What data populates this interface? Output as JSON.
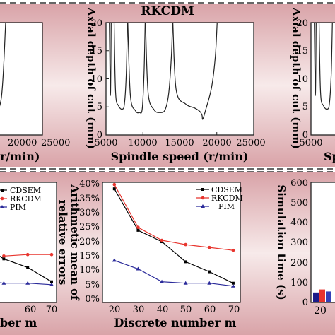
{
  "colors": {
    "band_edge": "#d9a3a8",
    "band_mid": "#f7eaea",
    "cdsem": "#000000",
    "rkcdm": "#e8352e",
    "pim": "#2a2a9a"
  },
  "chart_data": [
    {
      "id": "top-left",
      "type": "line",
      "title": "",
      "xlabel": "r/min)",
      "ylabel": "",
      "x_ticks": [
        "20000",
        "25000"
      ],
      "xlim": [
        5000,
        25000
      ],
      "ylim": [
        0,
        20
      ],
      "series": [
        {
          "x": [
            5000,
            15000,
            17800,
            18200,
            19400,
            20000
          ],
          "y": [
            20,
            8,
            4.5,
            3.4,
            6.5,
            20
          ]
        }
      ]
    },
    {
      "id": "top-center",
      "type": "line",
      "title": "RKCDM",
      "xlabel": "Spindle speed (r/min)",
      "ylabel": "Axial depth of cut (mm)",
      "x_ticks": [
        "5000",
        "10000",
        "15000",
        "20000",
        "25000"
      ],
      "y_ticks": [
        "0",
        "5",
        "10",
        "15",
        "20"
      ],
      "xlim": [
        5000,
        25000
      ],
      "ylim": [
        0,
        20
      ],
      "series": [
        {
          "x": [
            5450,
            5600,
            5700
          ],
          "y": [
            20,
            7,
            20
          ]
        },
        {
          "x": [
            6100,
            6300,
            6700,
            7200,
            7500,
            7750,
            7900
          ],
          "y": [
            20,
            7.5,
            5.2,
            4.6,
            5.6,
            11,
            20
          ]
        },
        {
          "x": [
            7950,
            8300,
            9000,
            9500,
            9900,
            10150,
            10300
          ],
          "y": [
            20,
            7,
            4.3,
            4.0,
            4.6,
            11,
            20
          ]
        },
        {
          "x": [
            10350,
            10700,
            11500,
            12300,
            13000,
            13500,
            13850,
            14000
          ],
          "y": [
            20,
            7.5,
            4.5,
            4.0,
            4.5,
            7.5,
            14,
            20
          ]
        },
        {
          "x": [
            14050,
            14500,
            15800,
            17000,
            17700,
            18000,
            18100,
            18500,
            19300,
            19800,
            20050
          ],
          "y": [
            20,
            8,
            5.5,
            4.8,
            4.2,
            3.5,
            2.8,
            4.5,
            8.5,
            14,
            20
          ]
        }
      ]
    },
    {
      "id": "top-right",
      "type": "line",
      "title": "",
      "xlabel": "Sp",
      "ylabel": "Axial depth of cut (mm)",
      "x_ticks": [
        "5000",
        "10000"
      ],
      "y_ticks": [
        "0",
        "5",
        "10",
        "15",
        "20"
      ],
      "xlim": [
        5000,
        25000
      ],
      "ylim": [
        0,
        20
      ],
      "series": [
        {
          "x": [
            5450,
            5600,
            5700
          ],
          "y": [
            20,
            7,
            20
          ]
        },
        {
          "x": [
            6100,
            6300,
            6700,
            7200,
            7500,
            7750,
            7900
          ],
          "y": [
            20,
            7.5,
            5.2,
            4.6,
            5.6,
            11,
            20
          ]
        }
      ]
    },
    {
      "id": "bottom-left",
      "type": "line",
      "title": "",
      "xlabel": "ber m",
      "ylabel": "",
      "x_ticks": [
        "60",
        "70"
      ],
      "xlim": [
        20,
        70
      ],
      "ylim": [
        0,
        40
      ],
      "legend": [
        "CDSEM",
        "RKCDM",
        "PIM"
      ],
      "series": [
        {
          "name": "CDSEM",
          "x": [
            40,
            50,
            60,
            70
          ],
          "y": [
            19.5,
            14,
            11,
            6
          ]
        },
        {
          "name": "RKCDM",
          "x": [
            50,
            60,
            70
          ],
          "y": [
            15,
            15.5,
            15.5
          ]
        },
        {
          "name": "PIM",
          "x": [
            40,
            50,
            60,
            70
          ],
          "y": [
            6.5,
            5.5,
            5.5,
            5
          ]
        }
      ]
    },
    {
      "id": "bottom-center",
      "type": "line",
      "title": "",
      "xlabel": "Discrete number m",
      "ylabel": "Arithmetic mean of relative errors",
      "ylabel_lines": [
        "Arithmetic mean of",
        "relative errors"
      ],
      "x_ticks": [
        "20",
        "30",
        "40",
        "50",
        "60",
        "70"
      ],
      "y_ticks": [
        "0%",
        "5%",
        "10%",
        "15%",
        "20%",
        "25%",
        "30%",
        "35%",
        "40%"
      ],
      "xlim": [
        15,
        73
      ],
      "ylim": [
        0,
        42
      ],
      "legend": [
        "CDSEM",
        "RKCDM",
        "PIM"
      ],
      "series": [
        {
          "name": "CDSEM",
          "x": [
            20,
            30,
            40,
            50,
            60,
            70
          ],
          "y": [
            38.5,
            24,
            20,
            13,
            9.5,
            5.5
          ]
        },
        {
          "name": "RKCDM",
          "x": [
            20,
            30,
            40,
            50,
            60,
            70
          ],
          "y": [
            40,
            25,
            20.5,
            19,
            18,
            17
          ]
        },
        {
          "name": "PIM",
          "x": [
            20,
            30,
            40,
            50,
            60,
            70
          ],
          "y": [
            13.5,
            10.5,
            6,
            5.5,
            5.5,
            4.5
          ]
        }
      ]
    },
    {
      "id": "bottom-right",
      "type": "bar",
      "title": "",
      "xlabel": "",
      "ylabel": "Simulation time (s)",
      "x_ticks": [
        "20"
      ],
      "y_ticks": [
        "0",
        "100",
        "200",
        "300",
        "400",
        "500",
        "600"
      ],
      "ylim": [
        0,
        600
      ],
      "categories": [
        "20"
      ],
      "series": [
        {
          "name": "CDSEM",
          "values": [
            50
          ]
        },
        {
          "name": "RKCDM",
          "values": [
            65
          ]
        },
        {
          "name": "PIM",
          "values": [
            55
          ]
        }
      ]
    }
  ]
}
